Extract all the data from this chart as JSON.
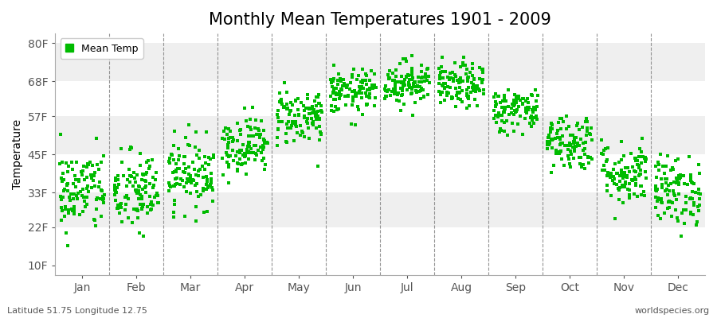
{
  "title": "Monthly Mean Temperatures 1901 - 2009",
  "ylabel": "Temperature",
  "ytick_labels": [
    "10F",
    "22F",
    "33F",
    "45F",
    "57F",
    "68F",
    "80F"
  ],
  "ytick_values": [
    10,
    22,
    33,
    45,
    57,
    68,
    80
  ],
  "ylim": [
    7,
    83
  ],
  "month_labels": [
    "Jan",
    "Feb",
    "Mar",
    "Apr",
    "May",
    "Jun",
    "Jul",
    "Aug",
    "Sep",
    "Oct",
    "Nov",
    "Dec"
  ],
  "dot_color": "#00BB00",
  "dot_size": 6,
  "legend_label": "Mean Temp",
  "subtitle_left": "Latitude 51.75 Longitude 12.75",
  "subtitle_right": "worldspecies.org",
  "bg_color": "#FFFFFF",
  "band_colors": [
    "#FFFFFF",
    "#EFEFEF"
  ],
  "title_fontsize": 15,
  "axis_label_fontsize": 10,
  "tick_fontsize": 10,
  "monthly_means_F": [
    33.5,
    33.0,
    39.0,
    48.0,
    57.0,
    64.5,
    67.5,
    66.5,
    59.0,
    49.0,
    39.0,
    33.5
  ],
  "monthly_stds_F": [
    6.5,
    6.5,
    5.5,
    4.5,
    4.5,
    3.5,
    3.5,
    3.5,
    3.5,
    4.5,
    5.0,
    5.5
  ],
  "n_years": 109,
  "seed": 42
}
